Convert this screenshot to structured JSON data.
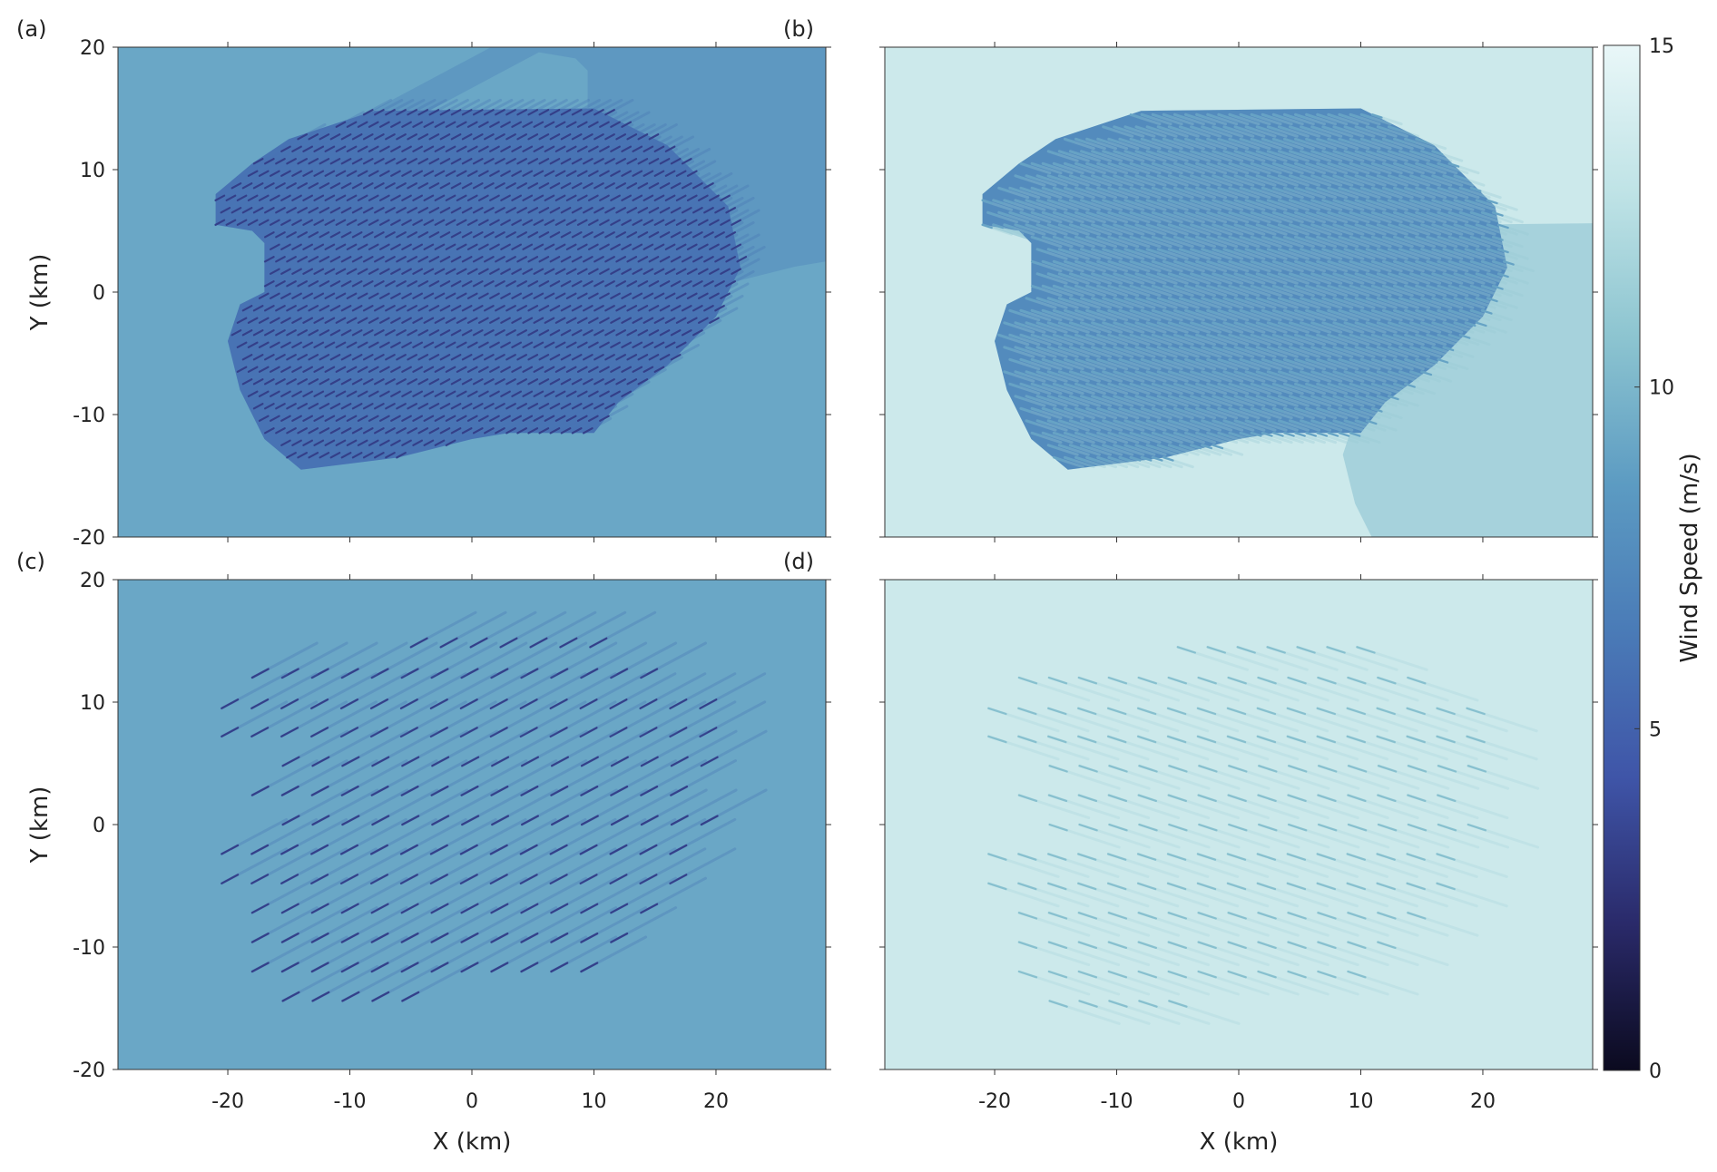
{
  "chart_data": {
    "type": "heatmap",
    "colorbar": {
      "label": "Wind Speed (m/s)",
      "range": [
        0,
        15
      ],
      "ticks": [
        0,
        5,
        10,
        15
      ],
      "tick_labels": [
        "0",
        "5",
        "10",
        "15"
      ],
      "colors": [
        "#0b0a1f",
        "#2a2a6a",
        "#3f55a8",
        "#4a7bb7",
        "#5c9bc2",
        "#8cc4d0",
        "#bfe3e6",
        "#e9f7f8"
      ]
    },
    "x_axis": {
      "label": "X (km)",
      "range": [
        -29,
        29
      ],
      "ticks": [
        -20,
        -10,
        0,
        10,
        20
      ],
      "tick_labels": [
        "-20",
        "-10",
        "0",
        "10",
        "20"
      ]
    },
    "y_axis": {
      "label": "Y (km)",
      "range": [
        -20,
        20
      ],
      "ticks": [
        -20,
        -10,
        0,
        10,
        20
      ],
      "tick_labels": [
        "-20",
        "-10",
        "0",
        "10",
        "20"
      ]
    },
    "panels": [
      {
        "label": "(a)",
        "background_speed": 9.2,
        "wake_speed": 6.0,
        "turbine_speed": 3.2,
        "turbine_layout": "dense",
        "turbine_angle_deg": 28,
        "show_y_labels": true,
        "show_x_labels": false
      },
      {
        "label": "(b)",
        "background_speed": 13.5,
        "wake_speed": 7.5,
        "turbine_speed": 9.0,
        "turbine_layout": "dense",
        "turbine_angle_deg": -18,
        "show_y_labels": false,
        "show_x_labels": false
      },
      {
        "label": "(c)",
        "background_speed": 9.2,
        "wake_speed": 8.0,
        "turbine_speed": 3.2,
        "turbine_layout": "sparse",
        "turbine_angle_deg": 28,
        "show_y_labels": true,
        "show_x_labels": true
      },
      {
        "label": "(d)",
        "background_speed": 13.5,
        "wake_speed": 12.2,
        "turbine_speed": 10.5,
        "turbine_layout": "sparse",
        "turbine_angle_deg": -18,
        "show_y_labels": false,
        "show_x_labels": true
      }
    ]
  }
}
